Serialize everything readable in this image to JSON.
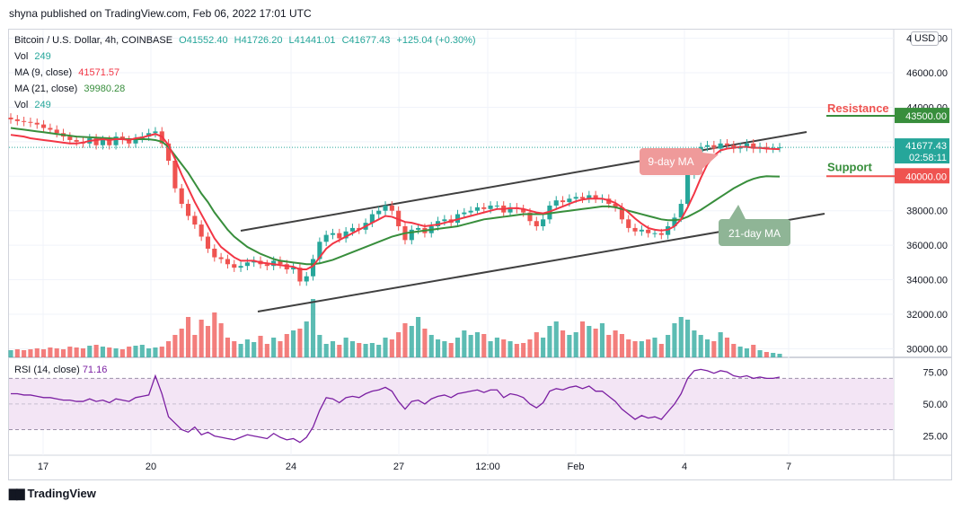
{
  "header": {
    "published": "shyna published on TradingView.com, Feb 06, 2022 17:01 UTC"
  },
  "legend": {
    "symbol": "Bitcoin / U.S. Dollar, 4h, COINBASE",
    "open": "O41552.40",
    "high": "H41726.20",
    "low": "L41441.01",
    "close": "C41677.43",
    "change": "+125.04 (+0.30%)",
    "vol_label": "Vol",
    "vol_value": "249",
    "ma9_label": "MA (9, close)",
    "ma9_value": "41571.57",
    "ma21_label": "MA (21, close)",
    "ma21_value": "39980.28",
    "vol2_label": "Vol",
    "vol2_value": "249"
  },
  "rsi": {
    "label": "RSI (14, close)",
    "value": "71.16"
  },
  "currency": "USD",
  "annotations": {
    "resistance": "Resistance",
    "support": "Support",
    "ma9": "9-day MA",
    "ma21": "21-day MA",
    "resistance_price": "43500.00",
    "support_price": "40000.00",
    "last_price": "41677.43",
    "countdown": "02:58:11"
  },
  "footer": {
    "brand": "TradingView"
  },
  "colors": {
    "up": "#26a69a",
    "down": "#ef5350",
    "ma9": "#f23645",
    "ma21": "#388e3c",
    "rsi": "#7b1fa2",
    "channel": "#404040"
  },
  "chart_data": {
    "type": "candlestick",
    "price_axis": {
      "ticks": [
        "48000.00",
        "46000.00",
        "44000.00",
        "42000.00",
        "40000.00",
        "38000.00",
        "36000.00",
        "34000.00",
        "32000.00",
        "30000.00"
      ],
      "range": [
        29500,
        48500
      ]
    },
    "time_axis": {
      "labels": [
        "17",
        "20",
        "24",
        "27",
        "12:00",
        "Feb",
        "4",
        "7"
      ]
    },
    "rsi_axis": {
      "ticks": [
        "75.00",
        "50.00",
        "25.00"
      ],
      "range": [
        10,
        85
      ],
      "band": [
        30,
        70
      ]
    },
    "close": [
      43300,
      43200,
      43150,
      43100,
      43000,
      42800,
      42700,
      42500,
      42300,
      42100,
      42000,
      41900,
      42200,
      41800,
      42100,
      41800,
      42300,
      42100,
      41900,
      42200,
      42300,
      42500,
      42600,
      41900,
      40900,
      39300,
      38400,
      37700,
      37200,
      36500,
      35800,
      35300,
      35200,
      34900,
      34700,
      34800,
      35000,
      35100,
      34900,
      34800,
      35100,
      34900,
      34600,
      34700,
      33900,
      34200,
      35200,
      36200,
      36600,
      36700,
      36400,
      36800,
      37000,
      36900,
      37300,
      37800,
      38000,
      38300,
      38000,
      37100,
      36300,
      36900,
      37000,
      36700,
      37100,
      37400,
      37500,
      37300,
      37800,
      37900,
      38000,
      38200,
      38100,
      38300,
      38300,
      37900,
      38200,
      38100,
      37900,
      37400,
      37100,
      37500,
      38300,
      38600,
      38500,
      38700,
      38800,
      38700,
      38900,
      38700,
      38700,
      38400,
      38200,
      37500,
      37000,
      36800,
      36900,
      36700,
      36700,
      36600,
      37100,
      37600,
      38400,
      40100,
      41400,
      41700,
      41800,
      41600,
      41900,
      41800,
      41600,
      41700,
      41900,
      41600,
      41700,
      41600,
      41650,
      41677
    ],
    "volume": [
      8,
      9,
      8,
      9,
      10,
      9,
      11,
      10,
      9,
      12,
      11,
      10,
      13,
      14,
      12,
      11,
      10,
      9,
      12,
      13,
      14,
      10,
      11,
      12,
      18,
      25,
      32,
      45,
      25,
      42,
      35,
      50,
      38,
      22,
      18,
      15,
      20,
      17,
      24,
      15,
      22,
      18,
      26,
      30,
      32,
      40,
      65,
      25,
      15,
      18,
      14,
      22,
      18,
      16,
      15,
      16,
      14,
      22,
      20,
      28,
      38,
      35,
      45,
      32,
      25,
      20,
      18,
      16,
      22,
      30,
      25,
      28,
      26,
      18,
      22,
      20,
      18,
      15,
      16,
      20,
      28,
      22,
      35,
      40,
      30,
      25,
      28,
      40,
      35,
      32,
      38,
      25,
      30,
      26,
      20,
      18,
      18,
      20,
      22,
      15,
      25,
      38,
      45,
      42,
      30,
      25,
      20,
      18,
      28,
      22,
      15,
      12,
      10,
      14,
      8,
      6,
      5,
      4
    ],
    "ma9": [
      42400,
      42350,
      42300,
      42200,
      42150,
      42100,
      42050,
      42000,
      41950,
      41900,
      41900,
      41950,
      42050,
      42100,
      42150,
      42100,
      42150,
      42150,
      42100,
      42200,
      42250,
      42350,
      42450,
      42300,
      41800,
      41000,
      40100,
      39300,
      38500,
      37800,
      37100,
      36400,
      35900,
      35600,
      35300,
      35100,
      35100,
      35100,
      35000,
      34950,
      34900,
      34850,
      34800,
      34750,
      34600,
      34600,
      34800,
      35300,
      35800,
      36100,
      36300,
      36500,
      36700,
      36900,
      37100,
      37300,
      37500,
      37700,
      37650,
      37500,
      37350,
      37300,
      37200,
      37100,
      37150,
      37200,
      37300,
      37400,
      37500,
      37600,
      37700,
      37800,
      37900,
      38000,
      38100,
      38100,
      38150,
      38150,
      38100,
      38000,
      37900,
      37850,
      37950,
      38100,
      38250,
      38400,
      38550,
      38650,
      38700,
      38700,
      38700,
      38600,
      38450,
      38200,
      37900,
      37550,
      37250,
      37000,
      36900,
      36850,
      36900,
      37100,
      37500,
      38200,
      39000,
      39900,
      40700,
      41200,
      41500,
      41600,
      41650,
      41700,
      41700,
      41650,
      41650,
      41600,
      41580,
      41571
    ],
    "ma21": [
      42800,
      42750,
      42700,
      42650,
      42600,
      42550,
      42500,
      42450,
      42400,
      42350,
      42300,
      42280,
      42260,
      42240,
      42220,
      42200,
      42180,
      42160,
      42150,
      42150,
      42150,
      42140,
      42100,
      42000,
      41700,
      41200,
      40700,
      40200,
      39600,
      39000,
      38500,
      37900,
      37400,
      36900,
      36500,
      36200,
      35900,
      35700,
      35500,
      35350,
      35200,
      35100,
      35050,
      35000,
      34950,
      34900,
      34900,
      34950,
      35050,
      35150,
      35300,
      35450,
      35600,
      35750,
      35900,
      36050,
      36200,
      36350,
      36500,
      36600,
      36700,
      36750,
      36800,
      36850,
      36900,
      36950,
      37000,
      37050,
      37100,
      37200,
      37300,
      37400,
      37500,
      37550,
      37600,
      37650,
      37700,
      37750,
      37800,
      37800,
      37800,
      37800,
      37850,
      37900,
      37950,
      38000,
      38050,
      38100,
      38150,
      38200,
      38250,
      38250,
      38200,
      38100,
      38000,
      37900,
      37800,
      37700,
      37600,
      37500,
      37450,
      37450,
      37500,
      37650,
      37850,
      38050,
      38300,
      38550,
      38800,
      39050,
      39300,
      39500,
      39700,
      39850,
      39950,
      40000,
      39990,
      39980
    ],
    "rsi": [
      58,
      58,
      57,
      57,
      56,
      55,
      55,
      54,
      53,
      53,
      52,
      52,
      54,
      52,
      53,
      51,
      54,
      53,
      52,
      55,
      56,
      57,
      72,
      58,
      40,
      35,
      30,
      28,
      32,
      26,
      28,
      25,
      24,
      23,
      22,
      24,
      26,
      25,
      24,
      23,
      27,
      24,
      22,
      23,
      20,
      24,
      32,
      45,
      55,
      54,
      51,
      55,
      56,
      55,
      58,
      60,
      61,
      63,
      60,
      52,
      46,
      52,
      53,
      50,
      54,
      56,
      57,
      55,
      58,
      59,
      60,
      61,
      59,
      61,
      61,
      55,
      58,
      57,
      55,
      50,
      47,
      51,
      60,
      62,
      61,
      63,
      64,
      62,
      64,
      60,
      60,
      56,
      52,
      46,
      42,
      38,
      41,
      39,
      40,
      38,
      44,
      50,
      58,
      70,
      76,
      77,
      76,
      74,
      76,
      75,
      72,
      71,
      72,
      70,
      71,
      70,
      70,
      71
    ]
  }
}
